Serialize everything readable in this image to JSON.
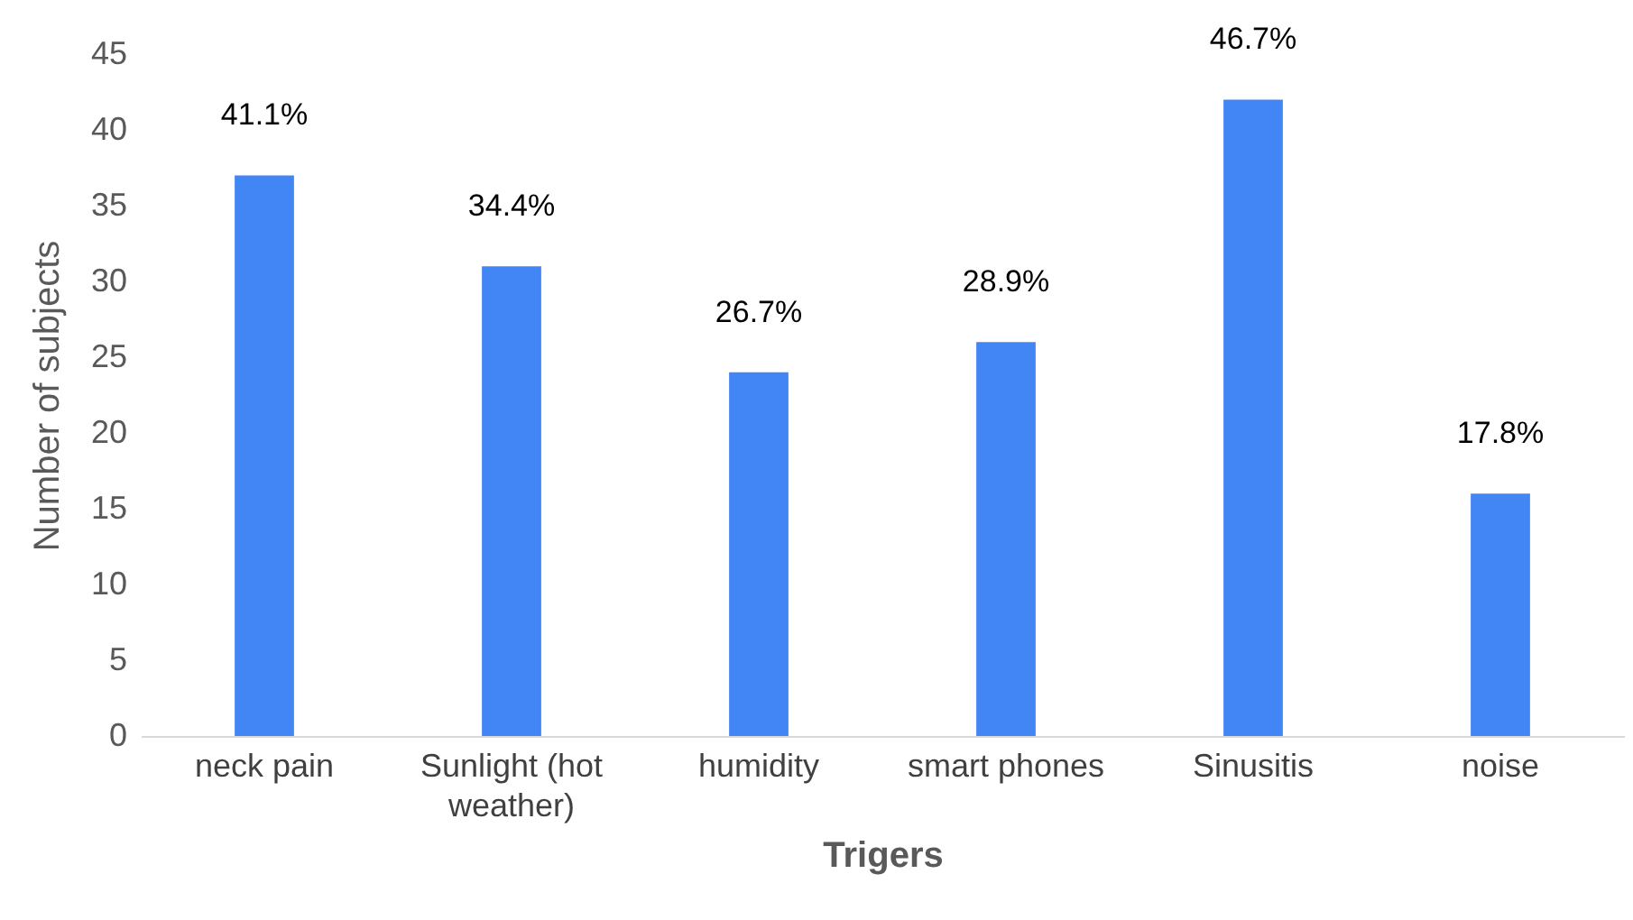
{
  "chart_data": {
    "type": "bar",
    "xlabel": "Trigers",
    "ylabel": "Number of subjects",
    "categories": [
      "neck pain",
      "Sunlight (hot weather)",
      "humidity",
      "smart phones",
      "Sinusitis",
      "noise"
    ],
    "values": [
      37,
      31,
      24,
      26,
      42,
      16
    ],
    "annotations": [
      {
        "text": "41.1%",
        "x": "neck pain",
        "y": 37
      },
      {
        "text": "34.4%",
        "x": "Sunlight (hot weather)",
        "y": 31
      },
      {
        "text": "26.7%",
        "x": "humidity",
        "y": 24
      },
      {
        "text": "28.9%",
        "x": "smart phones",
        "y": 26
      },
      {
        "text": "46.7%",
        "x": "Sinusitis",
        "y": 42
      },
      {
        "text": "17.8%",
        "x": "noise",
        "y": 16
      }
    ],
    "color": "#4285f4",
    "ylim": [
      0,
      45
    ],
    "yticks": [
      0,
      5,
      10,
      15,
      20,
      25,
      30,
      35,
      40,
      45
    ],
    "grid": false
  }
}
